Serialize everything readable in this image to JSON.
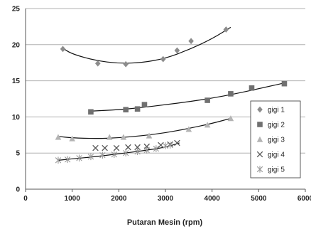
{
  "chart_data": {
    "type": "scatter",
    "title": "",
    "xlabel": "Putaran Mesin (rpm)",
    "ylabel": "",
    "xlim": [
      0,
      6000
    ],
    "ylim": [
      0,
      25
    ],
    "x_ticks": [
      "0",
      "1000",
      "2000",
      "3000",
      "4000",
      "5000",
      "6000"
    ],
    "y_ticks": [
      "0",
      "5",
      "10",
      "15",
      "20",
      "25"
    ],
    "grid": "horizontal",
    "legend_position": "right",
    "series": [
      {
        "name": "gigi 1",
        "marker": "diamond",
        "color": "#8c8c8c",
        "points": [
          [
            800,
            19.4
          ],
          [
            1550,
            17.4
          ],
          [
            2150,
            17.3
          ],
          [
            2950,
            18.0
          ],
          [
            3250,
            19.2
          ],
          [
            3550,
            20.5
          ],
          [
            4300,
            22.1
          ]
        ],
        "trend": [
          [
            800,
            19.5
          ],
          [
            1000,
            18.7
          ],
          [
            1500,
            17.8
          ],
          [
            2000,
            17.4
          ],
          [
            2500,
            17.5
          ],
          [
            3000,
            18.1
          ],
          [
            3500,
            19.3
          ],
          [
            4000,
            20.8
          ],
          [
            4400,
            22.4
          ]
        ]
      },
      {
        "name": "gigi 2",
        "marker": "square",
        "color": "#707070",
        "points": [
          [
            1400,
            10.7
          ],
          [
            2150,
            11.0
          ],
          [
            2400,
            11.1
          ],
          [
            2550,
            11.7
          ],
          [
            3900,
            12.3
          ],
          [
            4400,
            13.2
          ],
          [
            4850,
            14.0
          ],
          [
            5550,
            14.6
          ]
        ],
        "trend": [
          [
            1400,
            10.8
          ],
          [
            2000,
            11.0
          ],
          [
            2500,
            11.3
          ],
          [
            3000,
            11.7
          ],
          [
            3500,
            12.1
          ],
          [
            4000,
            12.6
          ],
          [
            4500,
            13.2
          ],
          [
            5000,
            13.9
          ],
          [
            5550,
            14.7
          ]
        ]
      },
      {
        "name": "gigi 3",
        "marker": "triangle",
        "color": "#b4b4b4",
        "points": [
          [
            700,
            7.2
          ],
          [
            1000,
            7.0
          ],
          [
            1800,
            7.2
          ],
          [
            2100,
            7.2
          ],
          [
            2650,
            7.4
          ],
          [
            3500,
            8.3
          ],
          [
            3900,
            8.9
          ],
          [
            4400,
            9.8
          ]
        ],
        "trend": [
          [
            700,
            7.3
          ],
          [
            1000,
            7.1
          ],
          [
            1500,
            7.0
          ],
          [
            2000,
            7.1
          ],
          [
            2500,
            7.4
          ],
          [
            3000,
            7.8
          ],
          [
            3500,
            8.4
          ],
          [
            4000,
            9.1
          ],
          [
            4400,
            9.8
          ]
        ]
      },
      {
        "name": "gigi 4",
        "marker": "x",
        "color": "#555555",
        "points": [
          [
            1500,
            5.7
          ],
          [
            1700,
            5.7
          ],
          [
            1950,
            5.7
          ],
          [
            2200,
            5.8
          ],
          [
            2400,
            5.8
          ],
          [
            2600,
            5.9
          ],
          [
            2900,
            6.1
          ],
          [
            3100,
            6.2
          ],
          [
            3250,
            6.4
          ]
        ],
        "trend": []
      },
      {
        "name": "gigi 5",
        "marker": "star",
        "color": "#9a9a9a",
        "points": [
          [
            700,
            4.0
          ],
          [
            900,
            4.1
          ],
          [
            1150,
            4.3
          ],
          [
            1400,
            4.5
          ],
          [
            1650,
            4.7
          ],
          [
            1900,
            4.8
          ],
          [
            2150,
            5.0
          ],
          [
            2400,
            5.2
          ],
          [
            2600,
            5.4
          ],
          [
            2800,
            5.6
          ],
          [
            3000,
            6.0
          ],
          [
            3100,
            6.1
          ]
        ],
        "trend": [
          [
            700,
            4.0
          ],
          [
            1000,
            4.2
          ],
          [
            1500,
            4.5
          ],
          [
            2000,
            4.9
          ],
          [
            2500,
            5.3
          ],
          [
            3000,
            5.8
          ],
          [
            3300,
            6.4
          ]
        ]
      }
    ]
  }
}
